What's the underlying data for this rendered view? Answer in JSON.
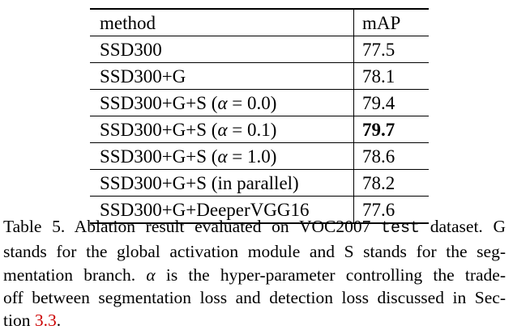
{
  "table": {
    "headers": {
      "method": "method",
      "value": "mAP"
    },
    "rows": [
      {
        "method": "SSD300",
        "alpha": "",
        "suffix": "",
        "value": "77.5",
        "bold": false
      },
      {
        "method": "SSD300+G",
        "alpha": "",
        "suffix": "",
        "value": "78.1",
        "bold": false
      },
      {
        "method": "SSD300+G+S (",
        "alpha": "α",
        "suffix": " = 0.0)",
        "value": "79.4",
        "bold": false
      },
      {
        "method": "SSD300+G+S (",
        "alpha": "α",
        "suffix": " = 0.1)",
        "value": "79.7",
        "bold": true
      },
      {
        "method": "SSD300+G+S (",
        "alpha": "α",
        "suffix": " = 1.0)",
        "value": "78.6",
        "bold": false
      },
      {
        "method": "SSD300+G+S (in parallel)",
        "alpha": "",
        "suffix": "",
        "value": "78.2",
        "bold": false
      },
      {
        "method": "SSD300+G+DeeperVGG16",
        "alpha": "",
        "suffix": "",
        "value": "77.6",
        "bold": false
      }
    ]
  },
  "caption": {
    "line1_a": "Table 5. Ablation result evaluated on VOC2007 ",
    "line1_mono": "test",
    "line1_b": " dataset. G",
    "line2": "stands for the global activation module and S stands for the seg-",
    "line3_alpha": "α",
    "line3_b": " is the hyper-parameter controlling the trade-",
    "line3_a": "mentation branch. ",
    "line4": "off between segmentation loss and detection loss discussed in Sec-",
    "line5_a": "tion ",
    "line5_ref": "3.3",
    "line5_b": "."
  }
}
